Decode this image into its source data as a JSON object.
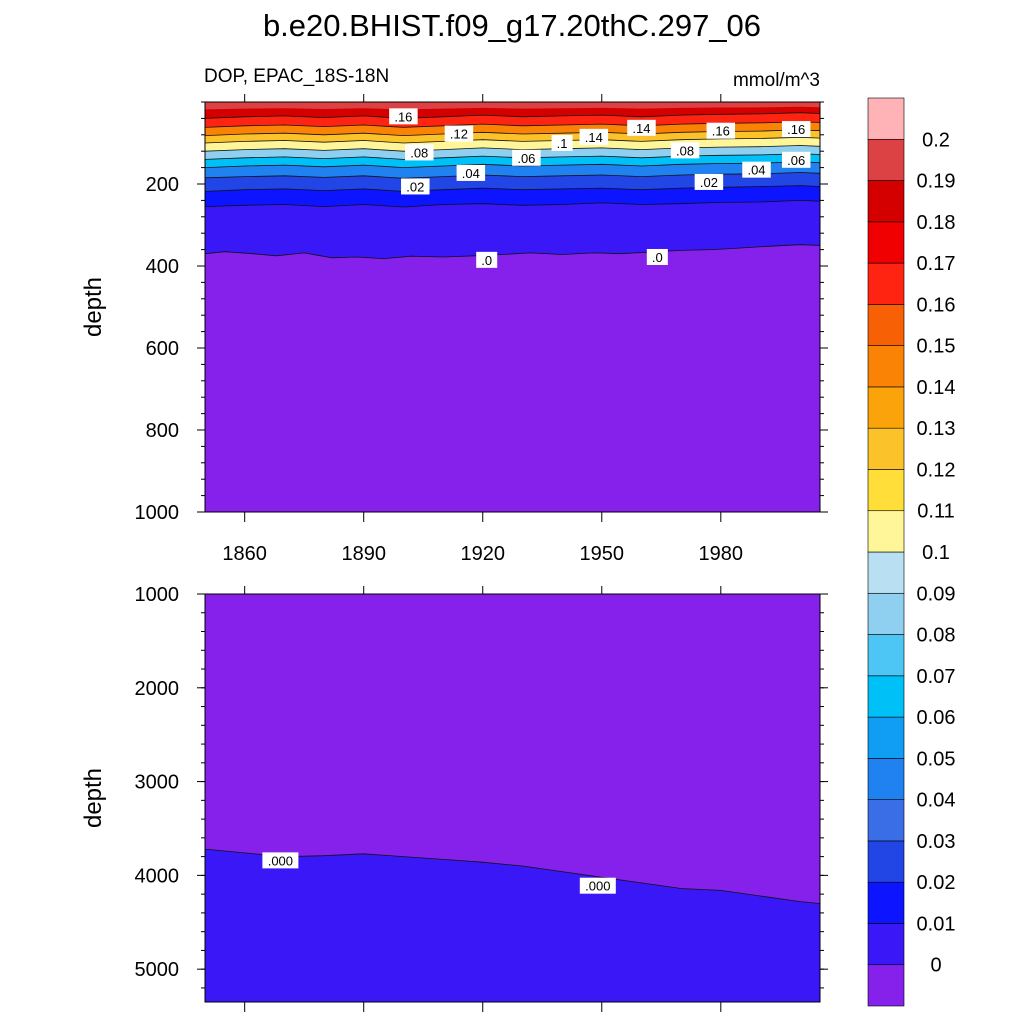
{
  "title": "b.e20.BHIST.f09_g17.20thC.297_06",
  "left_string": "DOP, EPAC_18S-18N",
  "right_string": "mmol/m^3",
  "colors": {
    "levels": [
      "#8521ea",
      "#3a17f7",
      "#0d14ff",
      "#2246e6",
      "#3a6ee6",
      "#1f82f0",
      "#109ef5",
      "#00c0f8",
      "#4ec6f5",
      "#8fd0f0",
      "#b8e0f2",
      "#fff699",
      "#ffde3a",
      "#fbc22a",
      "#fba30a",
      "#fa8205",
      "#f76005",
      "#ff2412",
      "#f00000",
      "#d40000",
      "#dc4144",
      "#ffb3b6"
    ],
    "contour_line": "#111111"
  },
  "colorbar": {
    "labels": [
      "0",
      "0.01",
      "0.02",
      "0.03",
      "0.04",
      "0.05",
      "0.06",
      "0.07",
      "0.08",
      "0.09",
      "0.1",
      "0.11",
      "0.12",
      "0.13",
      "0.14",
      "0.15",
      "0.16",
      "0.17",
      "0.18",
      "0.19",
      "0.2"
    ]
  },
  "chart_data": [
    {
      "type": "heatmap",
      "panel": "upper",
      "variable": "DOP",
      "region": "EPAC_18S-18N",
      "units": "mmol/m^3",
      "ylabel": "depth",
      "xlabel": "",
      "xlim": [
        1850,
        2005
      ],
      "ylim": [
        1000,
        0
      ],
      "x_ticks": [
        1860,
        1890,
        1920,
        1950,
        1980
      ],
      "y_ticks": [
        200,
        400,
        600,
        800,
        1000
      ],
      "contour_isolines": [
        {
          "level": 0.0,
          "x": [
            1850,
            1855,
            1862,
            1868,
            1875,
            1882,
            1888,
            1895,
            1902,
            1910,
            1918,
            1925,
            1932,
            1940,
            1948,
            1955,
            1962,
            1970,
            1978,
            1985,
            1992,
            2000,
            2005
          ],
          "depth": [
            370,
            365,
            370,
            375,
            368,
            380,
            378,
            382,
            376,
            378,
            375,
            372,
            368,
            372,
            368,
            370,
            366,
            362,
            360,
            356,
            352,
            348,
            350
          ]
        },
        {
          "level": 0.01,
          "x": [
            1850,
            1860,
            1870,
            1880,
            1890,
            1900,
            1910,
            1920,
            1930,
            1940,
            1950,
            1960,
            1970,
            1980,
            1990,
            2000,
            2005
          ],
          "depth": [
            255,
            252,
            250,
            255,
            250,
            256,
            250,
            248,
            252,
            250,
            246,
            250,
            248,
            245,
            244,
            240,
            242
          ]
        },
        {
          "level": 0.02,
          "x": [
            1850,
            1860,
            1870,
            1880,
            1890,
            1900,
            1910,
            1920,
            1930,
            1940,
            1950,
            1960,
            1970,
            1980,
            1990,
            2000,
            2005
          ],
          "depth": [
            218,
            214,
            212,
            216,
            212,
            218,
            214,
            210,
            214,
            212,
            210,
            214,
            210,
            208,
            206,
            204,
            206
          ]
        },
        {
          "level": 0.04,
          "x": [
            1850,
            1860,
            1870,
            1880,
            1890,
            1900,
            1910,
            1920,
            1930,
            1940,
            1950,
            1960,
            1970,
            1980,
            1990,
            2000,
            2005
          ],
          "depth": [
            185,
            182,
            180,
            184,
            180,
            186,
            182,
            178,
            182,
            180,
            178,
            182,
            178,
            176,
            175,
            172,
            174
          ]
        },
        {
          "level": 0.06,
          "x": [
            1850,
            1860,
            1870,
            1880,
            1890,
            1900,
            1910,
            1920,
            1930,
            1940,
            1950,
            1960,
            1970,
            1980,
            1990,
            2000,
            2005
          ],
          "depth": [
            160,
            156,
            154,
            158,
            154,
            160,
            156,
            152,
            156,
            154,
            152,
            156,
            152,
            150,
            149,
            146,
            148
          ]
        },
        {
          "level": 0.08,
          "x": [
            1850,
            1860,
            1870,
            1880,
            1890,
            1900,
            1910,
            1920,
            1930,
            1940,
            1950,
            1960,
            1970,
            1980,
            1990,
            2000,
            2005
          ],
          "depth": [
            140,
            136,
            134,
            138,
            134,
            140,
            136,
            132,
            136,
            134,
            132,
            136,
            132,
            130,
            129,
            126,
            128
          ]
        },
        {
          "level": 0.1,
          "x": [
            1850,
            1860,
            1870,
            1880,
            1890,
            1900,
            1910,
            1920,
            1930,
            1940,
            1950,
            1960,
            1970,
            1980,
            1990,
            2000,
            2005
          ],
          "depth": [
            120,
            116,
            114,
            118,
            114,
            120,
            116,
            112,
            116,
            114,
            112,
            116,
            112,
            110,
            109,
            106,
            108
          ]
        },
        {
          "level": 0.12,
          "x": [
            1850,
            1860,
            1870,
            1880,
            1890,
            1900,
            1910,
            1920,
            1930,
            1940,
            1950,
            1960,
            1970,
            1980,
            1990,
            2000,
            2005
          ],
          "depth": [
            100,
            96,
            94,
            98,
            94,
            100,
            96,
            92,
            96,
            94,
            92,
            96,
            92,
            90,
            89,
            86,
            88
          ]
        },
        {
          "level": 0.14,
          "x": [
            1850,
            1860,
            1870,
            1880,
            1890,
            1900,
            1910,
            1920,
            1930,
            1940,
            1950,
            1960,
            1970,
            1980,
            1990,
            2000,
            2005
          ],
          "depth": [
            82,
            78,
            76,
            80,
            76,
            82,
            78,
            74,
            78,
            76,
            74,
            78,
            74,
            72,
            71,
            68,
            70
          ]
        },
        {
          "level": 0.16,
          "x": [
            1850,
            1860,
            1870,
            1880,
            1890,
            1900,
            1910,
            1920,
            1930,
            1940,
            1950,
            1960,
            1970,
            1980,
            1990,
            2000,
            2005
          ],
          "depth": [
            62,
            58,
            56,
            60,
            56,
            62,
            58,
            54,
            58,
            56,
            54,
            58,
            54,
            52,
            51,
            48,
            50
          ]
        },
        {
          "level": 0.18,
          "x": [
            1850,
            1860,
            1870,
            1880,
            1890,
            1900,
            1910,
            1920,
            1930,
            1940,
            1950,
            1960,
            1970,
            1980,
            1990,
            2000,
            2005
          ],
          "depth": [
            40,
            36,
            34,
            38,
            34,
            40,
            36,
            32,
            36,
            34,
            32,
            36,
            32,
            30,
            29,
            26,
            28
          ]
        }
      ],
      "contour_labels": [
        {
          "text": ".16",
          "x": 1900,
          "depth": 35
        },
        {
          "text": ".12",
          "x": 1914,
          "depth": 77
        },
        {
          "text": ".1",
          "x": 1940,
          "depth": 100
        },
        {
          "text": ".14",
          "x": 1948,
          "depth": 85
        },
        {
          "text": ".14",
          "x": 1960,
          "depth": 63
        },
        {
          "text": ".16",
          "x": 1980,
          "depth": 70
        },
        {
          "text": ".16",
          "x": 1999,
          "depth": 66
        },
        {
          "text": ".08",
          "x": 1904,
          "depth": 123
        },
        {
          "text": ".06",
          "x": 1931,
          "depth": 136
        },
        {
          "text": ".08",
          "x": 1971,
          "depth": 118
        },
        {
          "text": ".06",
          "x": 1999,
          "depth": 141
        },
        {
          "text": ".04",
          "x": 1917,
          "depth": 173
        },
        {
          "text": ".04",
          "x": 1989,
          "depth": 165
        },
        {
          "text": ".02",
          "x": 1903,
          "depth": 206
        },
        {
          "text": ".02",
          "x": 1977,
          "depth": 195
        },
        {
          "text": ".0",
          "x": 1921,
          "depth": 385
        },
        {
          "text": ".0",
          "x": 1964,
          "depth": 378
        }
      ]
    },
    {
      "type": "heatmap",
      "panel": "lower",
      "variable": "DOP",
      "units": "mmol/m^3",
      "ylabel": "depth",
      "xlabel": "",
      "xlim": [
        1850,
        2005
      ],
      "ylim": [
        5350,
        1000
      ],
      "x_ticks": [
        1860,
        1890,
        1920,
        1950,
        1980
      ],
      "x_tick_labels_shown": false,
      "y_ticks": [
        1000,
        2000,
        3000,
        4000,
        5000
      ],
      "contour_isolines": [
        {
          "level": 0.0,
          "x": [
            1850,
            1860,
            1870,
            1880,
            1890,
            1900,
            1910,
            1920,
            1930,
            1940,
            1950,
            1960,
            1970,
            1980,
            1990,
            2000,
            2005
          ],
          "depth": [
            3720,
            3760,
            3800,
            3790,
            3770,
            3800,
            3830,
            3860,
            3900,
            3960,
            4020,
            4080,
            4140,
            4160,
            4220,
            4280,
            4300
          ]
        }
      ],
      "contour_labels": [
        {
          "text": ".000",
          "x": 1869,
          "depth": 3840
        },
        {
          "text": ".000",
          "x": 1949,
          "depth": 4110
        }
      ]
    }
  ]
}
